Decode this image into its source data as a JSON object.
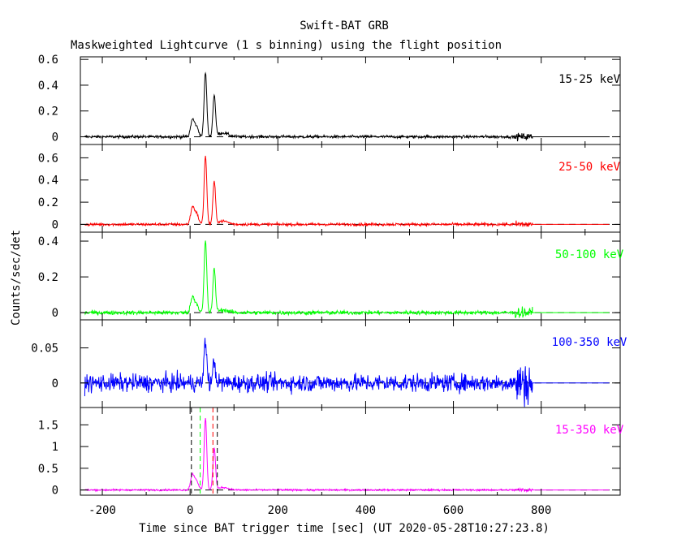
{
  "title": "Swift-BAT GRB",
  "subtitle": "Maskweighted Lightcurve (1 s binning) using the flight position",
  "ylabel": "Counts/sec/det",
  "xlabel": "Time since BAT trigger time [sec] (UT 2020-05-28T10:27:23.8)",
  "chart_data": {
    "type": "line",
    "xlim": [
      -250,
      980
    ],
    "xticks": [
      -200,
      0,
      200,
      400,
      600,
      800
    ],
    "x_tick_labels": [
      "-200",
      "0",
      "200",
      "400",
      "600",
      "800"
    ],
    "data_end": 780,
    "panels": [
      {
        "name": "15-25 keV",
        "color": "#000000",
        "ylim": [
          -0.06,
          0.62
        ],
        "yticks": [
          0,
          0.2,
          0.4,
          0.6
        ],
        "ytick_labels": [
          "0",
          "0.2",
          "0.4",
          "0.6"
        ],
        "noise": 0.008,
        "peaks": [
          {
            "t": 5,
            "a": 0.12,
            "w": 4
          },
          {
            "t": 14,
            "a": 0.08,
            "w": 5
          },
          {
            "t": 35,
            "a": 0.5,
            "w": 3
          },
          {
            "t": 55,
            "a": 0.32,
            "w": 3
          },
          {
            "t": 75,
            "a": 0.03,
            "w": 12
          }
        ]
      },
      {
        "name": "25-50 keV",
        "color": "#ff0000",
        "ylim": [
          -0.07,
          0.72
        ],
        "yticks": [
          0,
          0.2,
          0.4,
          0.6
        ],
        "ytick_labels": [
          "0",
          "0.2",
          "0.4",
          "0.6"
        ],
        "noise": 0.009,
        "peaks": [
          {
            "t": 5,
            "a": 0.14,
            "w": 4
          },
          {
            "t": 14,
            "a": 0.1,
            "w": 5
          },
          {
            "t": 35,
            "a": 0.62,
            "w": 3
          },
          {
            "t": 55,
            "a": 0.38,
            "w": 3
          },
          {
            "t": 75,
            "a": 0.03,
            "w": 12
          }
        ]
      },
      {
        "name": "50-100 keV",
        "color": "#00ff00",
        "ylim": [
          -0.04,
          0.45
        ],
        "yticks": [
          0,
          0.2,
          0.4
        ],
        "ytick_labels": [
          "0",
          "0.2",
          "0.4"
        ],
        "noise": 0.008,
        "peaks": [
          {
            "t": 5,
            "a": 0.08,
            "w": 4
          },
          {
            "t": 14,
            "a": 0.05,
            "w": 5
          },
          {
            "t": 35,
            "a": 0.4,
            "w": 3
          },
          {
            "t": 55,
            "a": 0.24,
            "w": 3
          },
          {
            "t": 75,
            "a": 0.015,
            "w": 12
          }
        ]
      },
      {
        "name": "100-350 keV",
        "color": "#0000ff",
        "ylim": [
          -0.035,
          0.09
        ],
        "yticks": [
          0,
          0.05
        ],
        "ytick_labels": [
          "0",
          "0.05"
        ],
        "noise": 0.009,
        "peaks": [
          {
            "t": 35,
            "a": 0.06,
            "w": 3
          },
          {
            "t": 55,
            "a": 0.03,
            "w": 3
          }
        ]
      },
      {
        "name": "15-350 keV",
        "color": "#ff00ff",
        "ylim": [
          -0.12,
          1.9
        ],
        "yticks": [
          0,
          0.5,
          1,
          1.5
        ],
        "ytick_labels": [
          "0",
          "0.5",
          "1",
          "1.5"
        ],
        "noise": 0.014,
        "peaks": [
          {
            "t": 5,
            "a": 0.32,
            "w": 4
          },
          {
            "t": 14,
            "a": 0.22,
            "w": 5
          },
          {
            "t": 35,
            "a": 1.65,
            "w": 3
          },
          {
            "t": 55,
            "a": 0.95,
            "w": 3
          },
          {
            "t": 75,
            "a": 0.06,
            "w": 12
          }
        ],
        "vlines": [
          {
            "t": 3,
            "color": "#000000"
          },
          {
            "t": 23,
            "color": "#00ff00"
          },
          {
            "t": 52,
            "color": "#ff0000"
          },
          {
            "t": 62,
            "color": "#000000"
          }
        ]
      }
    ]
  }
}
